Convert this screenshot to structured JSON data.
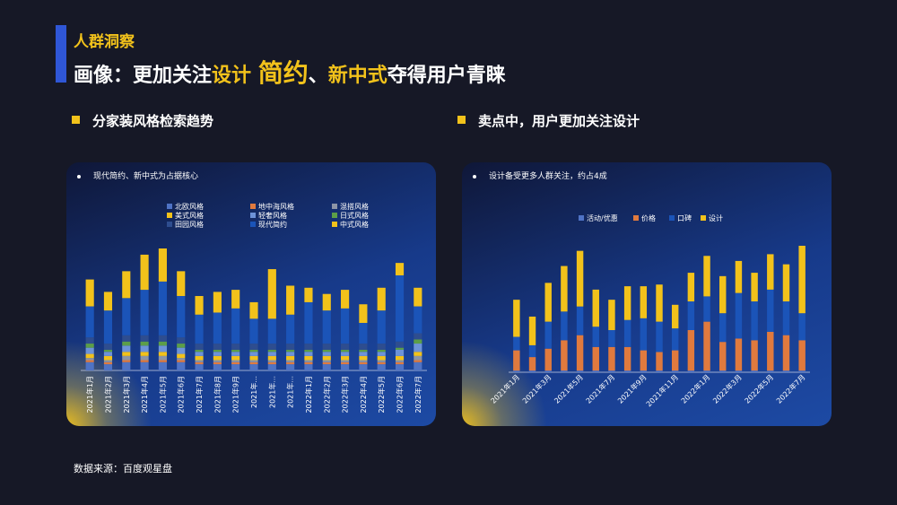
{
  "header": {
    "section_label": "人群洞察",
    "headline_part1": "画像：更加关注",
    "headline_hl1": "设计",
    "headline_hl2": "简约",
    "headline_part2": "、",
    "headline_hl3": "新中式",
    "headline_part3": "夺得用户青睐"
  },
  "left_subtitle": "分家装风格检索趋势",
  "right_subtitle": "卖点中，用户更加关注设计",
  "footer": "数据来源：百度观星盘",
  "colors": {
    "北欧风格": "#4f73c5",
    "地中海风格": "#e07a3e",
    "混搭风格": "#8c95a6",
    "美式风格": "#f2c21b",
    "轻奢风格": "#6d93d8",
    "日式风格": "#5c9e48",
    "田园风格": "#2e4d8f",
    "现代简约": "#1b54b8",
    "中式风格": "#f2c21b",
    "活动/优惠": "#4f73c5",
    "价格": "#e07a3e",
    "口碑": "#1b54b8",
    "设计": "#f2c21b"
  },
  "chart_data": [
    {
      "type": "bar",
      "stacked": true,
      "title": "现代简约、新中式为占据核心",
      "categories": [
        "2021年1月",
        "2021年2月",
        "2021年3月",
        "2021年4月",
        "2021年5月",
        "2021年6月",
        "2021年7月",
        "2021年8月",
        "2021年9月",
        "2021年...",
        "2021年...",
        "2021年...",
        "2022年1月",
        "2022年2月",
        "2022年3月",
        "2022年4月",
        "2022年5月",
        "2022年6月",
        "2022年7月"
      ],
      "tick_labels": [
        "2021年1月",
        "2021年2月",
        "2021年3月",
        "2021年4月",
        "2021年5月",
        "2021年6月",
        "2021年7月",
        "2021年8月",
        "2021年9月",
        "2021年...",
        "2021年...",
        "2021年...",
        "2022年1月",
        "2022年2月",
        "2022年3月",
        "2022年4月",
        "2022年5月",
        "2022年6月",
        "2022年7月"
      ],
      "legend": [
        "北欧风格",
        "地中海风格",
        "混搭风格",
        "美式风格",
        "轻奢风格",
        "日式风格",
        "田园风格",
        "现代简约",
        "中式风格"
      ],
      "series": [
        {
          "name": "北欧风格",
          "values": [
            4,
            3,
            4,
            4,
            4,
            4,
            3,
            3,
            3,
            3,
            3,
            3,
            3,
            3,
            3,
            3,
            3,
            3,
            4
          ]
        },
        {
          "name": "地中海风格",
          "values": [
            1,
            1,
            1,
            1,
            1,
            1,
            1,
            1,
            1,
            1,
            1,
            1,
            1,
            1,
            1,
            1,
            1,
            1,
            1
          ]
        },
        {
          "name": "混搭风格",
          "values": [
            1,
            1,
            2,
            2,
            2,
            1,
            1,
            1,
            1,
            1,
            1,
            1,
            1,
            1,
            1,
            1,
            1,
            1,
            2
          ]
        },
        {
          "name": "美式风格",
          "values": [
            2,
            2,
            2,
            2,
            2,
            2,
            2,
            2,
            2,
            2,
            2,
            2,
            2,
            2,
            2,
            2,
            2,
            2,
            2
          ]
        },
        {
          "name": "轻奢风格",
          "values": [
            3,
            2,
            3,
            3,
            3,
            3,
            2,
            2,
            2,
            2,
            2,
            2,
            2,
            2,
            2,
            2,
            2,
            3,
            4
          ]
        },
        {
          "name": "日式风格",
          "values": [
            2,
            1,
            2,
            2,
            2,
            2,
            1,
            1,
            1,
            1,
            1,
            1,
            1,
            1,
            1,
            1,
            1,
            1,
            2
          ]
        },
        {
          "name": "田园风格",
          "values": [
            3,
            3,
            3,
            3,
            3,
            3,
            3,
            3,
            3,
            3,
            3,
            3,
            3,
            3,
            3,
            3,
            3,
            3,
            3
          ]
        },
        {
          "name": "现代简约",
          "values": [
            15,
            16,
            18,
            22,
            26,
            20,
            14,
            15,
            17,
            12,
            12,
            14,
            20,
            16,
            17,
            10,
            16,
            32,
            13
          ]
        },
        {
          "name": "中式风格",
          "values": [
            13,
            9,
            13,
            17,
            16,
            12,
            9,
            10,
            9,
            8,
            24,
            14,
            7,
            8,
            9,
            9,
            11,
            6,
            9
          ]
        }
      ]
    },
    {
      "type": "bar",
      "stacked": true,
      "title": "设计备受更多人群关注，约占4成",
      "categories": [
        "2021年1月",
        "2021年2月",
        "2021年3月",
        "2021年4月",
        "2021年5月",
        "2021年6月",
        "2021年7月",
        "2021年8月",
        "2021年9月",
        "2021年10月",
        "2021年11月",
        "2021年12月",
        "2022年1月",
        "2022年2月",
        "2022年3月",
        "2022年4月",
        "2022年5月",
        "2022年6月",
        "2022年7月"
      ],
      "tick_labels": [
        "2021年1月",
        "",
        "2021年3月",
        "",
        "2021年5月",
        "",
        "2021年7月",
        "",
        "2021年9月",
        "",
        "2021年11月",
        "",
        "2022年1月",
        "",
        "2022年3月",
        "",
        "2022年5月",
        "",
        "2022年7月"
      ],
      "legend": [
        "活动/优惠",
        "价格",
        "口碑",
        "设计"
      ],
      "series": [
        {
          "name": "活动/优惠",
          "values": [
            1,
            1,
            1,
            1,
            1,
            1,
            1,
            1,
            1,
            1,
            1,
            1,
            1,
            1,
            1,
            1,
            1,
            1,
            1
          ]
        },
        {
          "name": "价格",
          "values": [
            12,
            8,
            13,
            18,
            21,
            14,
            14,
            14,
            12,
            11,
            12,
            24,
            29,
            17,
            19,
            18,
            23,
            21,
            18
          ]
        },
        {
          "name": "口碑",
          "values": [
            8,
            7,
            16,
            17,
            17,
            12,
            10,
            16,
            19,
            18,
            13,
            17,
            15,
            17,
            27,
            23,
            25,
            20,
            16
          ]
        },
        {
          "name": "设计",
          "values": [
            22,
            17,
            23,
            27,
            33,
            22,
            18,
            20,
            19,
            22,
            14,
            17,
            24,
            22,
            19,
            17,
            21,
            22,
            40
          ]
        }
      ]
    }
  ]
}
